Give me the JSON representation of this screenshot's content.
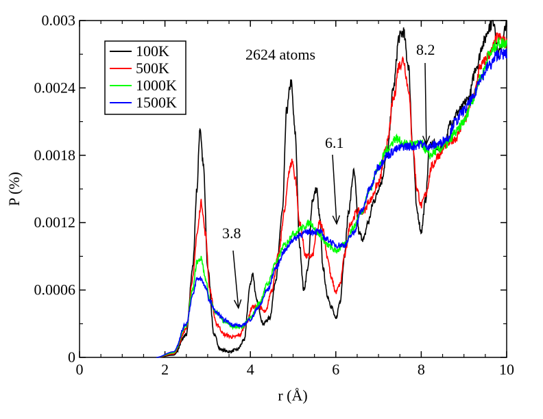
{
  "chart_data": {
    "type": "line",
    "title": "",
    "annotation_text": "2624 atoms",
    "xlabel": "r (Å)",
    "ylabel": "P (%)",
    "xlim": [
      0,
      10
    ],
    "ylim": [
      0,
      0.003
    ],
    "xticks": [
      "0",
      "2",
      "4",
      "6",
      "8",
      "10"
    ],
    "yticks": [
      "0",
      "0.0006",
      "0.0012",
      "0.0018",
      "0.0024",
      "0.003"
    ],
    "grid": false,
    "legend_position": "top-left",
    "arrows": [
      {
        "label": "3.8",
        "x": 3.72,
        "y": 0.00044
      },
      {
        "label": "6.1",
        "x": 6.02,
        "y": 0.00119
      },
      {
        "label": "8.2",
        "x": 8.12,
        "y": 0.0019
      }
    ],
    "series": [
      {
        "name": "100K",
        "color": "#000000",
        "x": [
          1.8,
          2.2,
          2.5,
          2.65,
          2.75,
          2.82,
          2.9,
          3.0,
          3.15,
          3.3,
          3.5,
          3.7,
          3.85,
          4.0,
          4.05,
          4.15,
          4.3,
          4.45,
          4.6,
          4.75,
          4.85,
          4.95,
          5.05,
          5.15,
          5.25,
          5.35,
          5.45,
          5.55,
          5.62,
          5.7,
          5.8,
          5.9,
          6.0,
          6.1,
          6.2,
          6.3,
          6.42,
          6.55,
          6.65,
          6.75,
          6.9,
          7.05,
          7.2,
          7.35,
          7.48,
          7.58,
          7.7,
          7.8,
          7.9,
          8.0,
          8.1,
          8.2,
          8.3,
          8.4,
          8.55,
          8.7,
          8.9,
          9.1,
          9.3,
          9.45,
          9.6,
          9.7,
          9.8,
          9.9,
          10.0
        ],
        "values": [
          0.0,
          2e-05,
          0.0002,
          0.0008,
          0.0015,
          0.00205,
          0.0017,
          0.0008,
          0.0002,
          7e-05,
          5e-05,
          7e-05,
          0.00015,
          0.00065,
          0.00075,
          0.0005,
          0.0003,
          0.00035,
          0.0007,
          0.0013,
          0.0022,
          0.00245,
          0.002,
          0.001,
          0.0006,
          0.0008,
          0.0014,
          0.0015,
          0.00125,
          0.0008,
          0.00055,
          0.00045,
          0.00034,
          0.0005,
          0.0009,
          0.0013,
          0.00165,
          0.0011,
          0.00105,
          0.0012,
          0.0014,
          0.00155,
          0.0018,
          0.0024,
          0.00285,
          0.0029,
          0.0026,
          0.0019,
          0.0013,
          0.00112,
          0.0014,
          0.0019,
          0.0019,
          0.00185,
          0.0019,
          0.0021,
          0.0022,
          0.0023,
          0.0026,
          0.0028,
          0.00295,
          0.003,
          0.0027,
          0.0028,
          0.003
        ]
      },
      {
        "name": "500K",
        "color": "#ff0000",
        "x": [
          1.8,
          2.2,
          2.5,
          2.65,
          2.75,
          2.85,
          2.95,
          3.05,
          3.2,
          3.4,
          3.6,
          3.75,
          3.9,
          4.05,
          4.2,
          4.35,
          4.5,
          4.65,
          4.8,
          4.9,
          4.98,
          5.05,
          5.15,
          5.3,
          5.45,
          5.55,
          5.62,
          5.7,
          5.8,
          5.9,
          6.0,
          6.1,
          6.2,
          6.35,
          6.5,
          6.65,
          6.8,
          7.0,
          7.2,
          7.35,
          7.48,
          7.58,
          7.7,
          7.8,
          7.9,
          8.0,
          8.1,
          8.25,
          8.4,
          8.6,
          8.8,
          9.0,
          9.2,
          9.4,
          9.6,
          9.8,
          10.0
        ],
        "values": [
          0.0,
          3e-05,
          0.00025,
          0.0007,
          0.0011,
          0.00138,
          0.0011,
          0.0006,
          0.0003,
          0.0002,
          0.00018,
          0.0002,
          0.0003,
          0.00045,
          0.00045,
          0.0004,
          0.0006,
          0.0009,
          0.0013,
          0.00165,
          0.00175,
          0.0016,
          0.0012,
          0.0009,
          0.0009,
          0.0011,
          0.0012,
          0.00115,
          0.0009,
          0.0007,
          0.00058,
          0.00065,
          0.0009,
          0.0012,
          0.0013,
          0.0013,
          0.0014,
          0.00155,
          0.0019,
          0.0023,
          0.0026,
          0.00265,
          0.0024,
          0.0019,
          0.0015,
          0.00135,
          0.00145,
          0.0017,
          0.0018,
          0.0019,
          0.00195,
          0.0021,
          0.0023,
          0.0026,
          0.0027,
          0.00285,
          0.0028
        ]
      },
      {
        "name": "1000K",
        "color": "#00ff00",
        "x": [
          1.8,
          2.2,
          2.5,
          2.65,
          2.75,
          2.85,
          2.95,
          3.05,
          3.2,
          3.4,
          3.6,
          3.8,
          4.0,
          4.2,
          4.4,
          4.6,
          4.8,
          5.0,
          5.2,
          5.4,
          5.6,
          5.8,
          6.0,
          6.2,
          6.4,
          6.6,
          6.8,
          7.0,
          7.2,
          7.4,
          7.6,
          7.8,
          8.0,
          8.2,
          8.4,
          8.6,
          8.8,
          9.0,
          9.2,
          9.4,
          9.6,
          9.8,
          10.0
        ],
        "values": [
          0.0,
          4e-05,
          0.00028,
          0.0006,
          0.00085,
          0.00088,
          0.0007,
          0.0005,
          0.0004,
          0.00032,
          0.00027,
          0.00027,
          0.00035,
          0.00048,
          0.00065,
          0.00085,
          0.001,
          0.0011,
          0.00115,
          0.0012,
          0.0011,
          0.001,
          0.00095,
          0.001,
          0.00115,
          0.0013,
          0.0015,
          0.0017,
          0.00185,
          0.00195,
          0.0019,
          0.0019,
          0.0019,
          0.0018,
          0.00185,
          0.0019,
          0.002,
          0.0021,
          0.0023,
          0.0025,
          0.0027,
          0.0028,
          0.0028
        ]
      },
      {
        "name": "1500K",
        "color": "#0000ff",
        "x": [
          1.8,
          2.2,
          2.5,
          2.65,
          2.75,
          2.85,
          2.95,
          3.05,
          3.2,
          3.4,
          3.6,
          3.8,
          4.0,
          4.2,
          4.4,
          4.6,
          4.8,
          5.0,
          5.2,
          5.4,
          5.6,
          5.8,
          6.0,
          6.2,
          6.4,
          6.6,
          6.8,
          7.0,
          7.2,
          7.4,
          7.6,
          7.8,
          8.0,
          8.2,
          8.4,
          8.6,
          8.8,
          9.0,
          9.2,
          9.4,
          9.6,
          9.8,
          10.0
        ],
        "values": [
          0.0,
          5e-05,
          0.0003,
          0.00055,
          0.0007,
          0.0007,
          0.00062,
          0.0005,
          0.0004,
          0.00033,
          0.00029,
          0.00028,
          0.00034,
          0.00045,
          0.0006,
          0.0008,
          0.00095,
          0.00105,
          0.0011,
          0.00112,
          0.00112,
          0.00105,
          0.001,
          0.001,
          0.0011,
          0.0013,
          0.0015,
          0.0017,
          0.0018,
          0.00185,
          0.00188,
          0.00188,
          0.0019,
          0.00188,
          0.0019,
          0.00195,
          0.0021,
          0.0022,
          0.0023,
          0.0025,
          0.0026,
          0.0027,
          0.0027
        ]
      }
    ]
  }
}
